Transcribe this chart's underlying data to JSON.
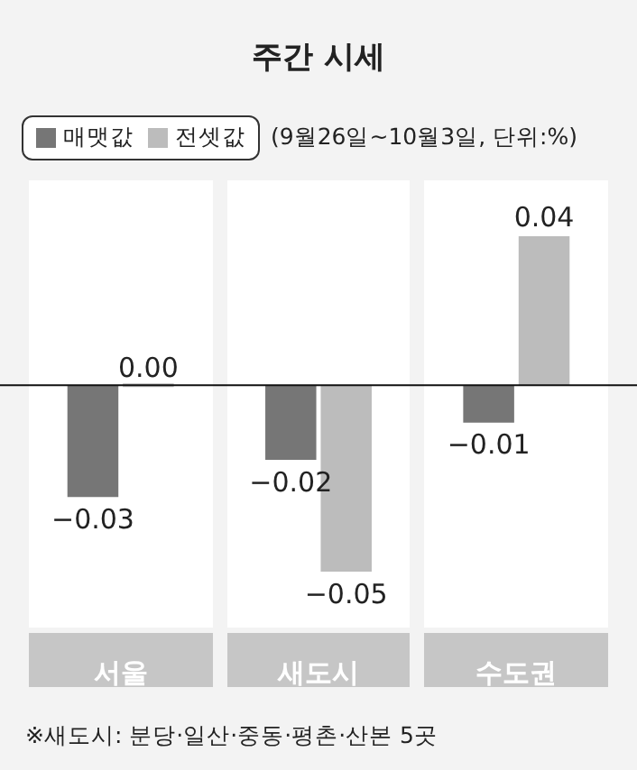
{
  "chart_data": {
    "type": "bar",
    "title": "주간 시세",
    "subtitle": "(9월26일~10월3일, 단위:%)",
    "categories": [
      "서울",
      "새도시",
      "수도권"
    ],
    "series": [
      {
        "name": "매맷값",
        "color": "#767676",
        "values": [
          -0.03,
          -0.02,
          -0.01
        ],
        "value_labels": [
          "−0.03",
          "−0.02",
          "−0.01"
        ]
      },
      {
        "name": "전셋값",
        "color": "#bcbcbc",
        "values": [
          0.0,
          -0.05,
          0.04
        ],
        "value_labels": [
          "0.00",
          "−0.05",
          "0.04"
        ]
      }
    ],
    "ylim": [
      -0.065,
      0.055
    ],
    "tick_labels": "x",
    "legend": "top left",
    "ref_lines": [
      {
        "axis": "y",
        "value": 0,
        "color": "#111111"
      }
    ],
    "annotations": [
      "※새도시: 분당·일산·중동·평촌·산본 5곳"
    ]
  }
}
